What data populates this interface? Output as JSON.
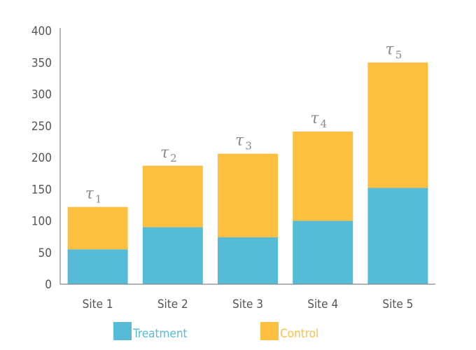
{
  "chart_data": {
    "type": "bar",
    "stacked": true,
    "categories": [
      "Site 1",
      "Site 2",
      "Site 3",
      "Site 4",
      "Site 5"
    ],
    "series": [
      {
        "name": "Treatment",
        "color": "#56BBD6",
        "values": [
          55,
          90,
          74,
          100,
          152
        ]
      },
      {
        "name": "Control",
        "color": "#FDBF3F",
        "values": [
          67,
          97,
          132,
          141,
          198
        ]
      }
    ],
    "annotations": [
      {
        "symbol": "τ",
        "sub": "1"
      },
      {
        "symbol": "τ",
        "sub": "2"
      },
      {
        "symbol": "τ",
        "sub": "3"
      },
      {
        "symbol": "τ",
        "sub": "4"
      },
      {
        "symbol": "τ",
        "sub": "5"
      }
    ],
    "yticks": [
      0,
      50,
      100,
      150,
      200,
      250,
      300,
      350,
      400
    ],
    "ylim": [
      0,
      400
    ],
    "grid": false,
    "legend_position": "bottom"
  }
}
